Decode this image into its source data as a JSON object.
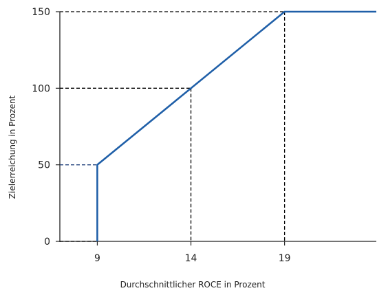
{
  "chart_data": {
    "type": "line",
    "title": "",
    "xlabel": "Durchschnittlicher ROCE in Prozent",
    "ylabel": "Zielerreichung in Prozent",
    "xlim": [
      7,
      23.9
    ],
    "ylim": [
      0,
      150
    ],
    "x_ticks": [
      9,
      14,
      19
    ],
    "y_ticks": [
      0,
      50,
      100,
      150
    ],
    "grid": false,
    "legend": "none",
    "series": [
      {
        "color": "#1f5fa8",
        "points": [
          [
            9,
            0
          ],
          [
            9,
            50
          ],
          [
            14,
            100
          ],
          [
            19,
            150
          ],
          [
            23.9,
            150
          ]
        ]
      }
    ],
    "reference_lines": [
      {
        "x": 9,
        "y": 50,
        "color": "#1f3f7a"
      },
      {
        "x": 14,
        "y": 100,
        "color": "#000000"
      },
      {
        "x": 19,
        "y": 150,
        "color": "#000000"
      }
    ],
    "baseline_dash_to_x": 9
  }
}
